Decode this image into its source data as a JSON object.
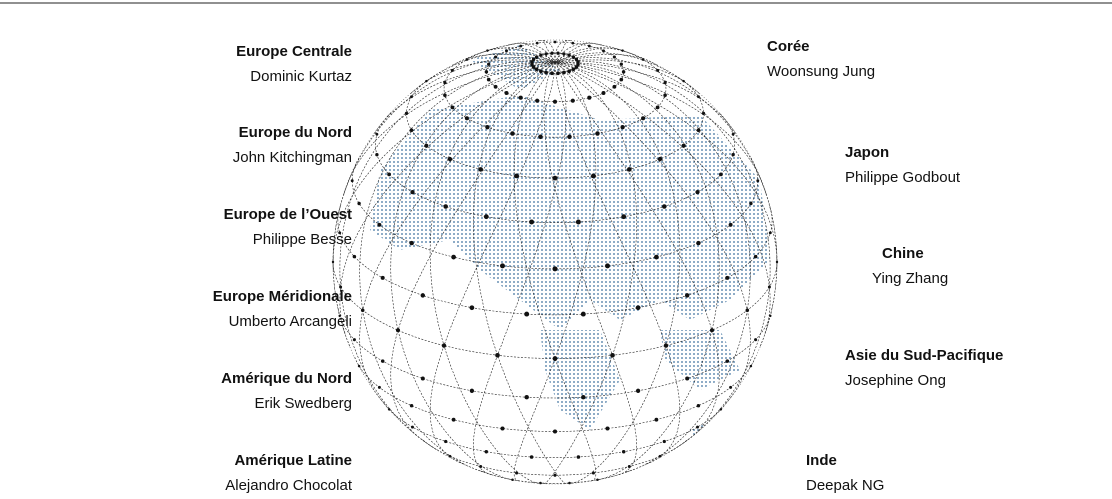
{
  "regions_left": [
    {
      "region": "Europe Centrale",
      "name": "Dominic Kurtaz"
    },
    {
      "region": "Europe du Nord",
      "name": "John Kitchingman"
    },
    {
      "region": "Europe de l’Ouest",
      "name": "Philippe Besse"
    },
    {
      "region": "Europe Méridionale",
      "name": "Umberto Arcangeli"
    },
    {
      "region": "Amérique du Nord",
      "name": "Erik Swedberg"
    },
    {
      "region": "Amérique Latine",
      "name": "Alejandro Chocolat"
    }
  ],
  "regions_right": [
    {
      "region": "Corée",
      "name": "Woonsung Jung"
    },
    {
      "region": "Japon",
      "name": "Philippe Godbout"
    },
    {
      "region": "Chine",
      "name": "Ying Zhang"
    },
    {
      "region": "Asie du Sud-Pacifique",
      "name": "Josephine Ong"
    },
    {
      "region": "Inde",
      "name": "Deepak NG"
    }
  ]
}
